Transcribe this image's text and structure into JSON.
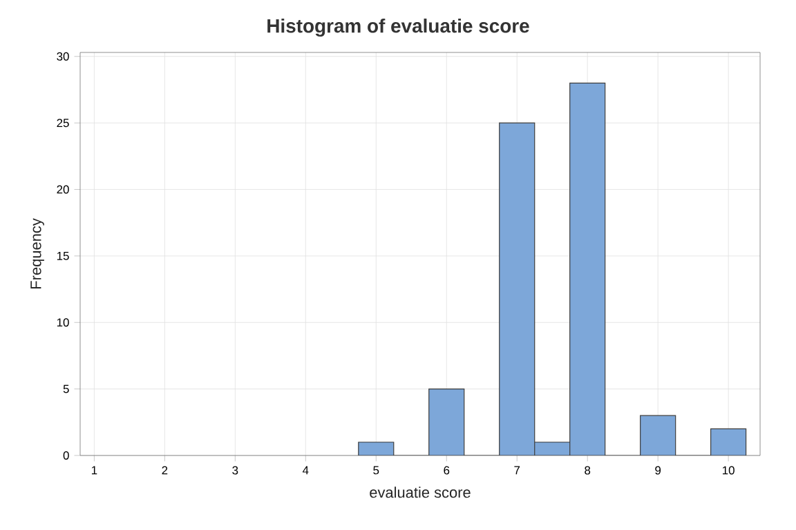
{
  "chart_data": {
    "type": "histogram",
    "title": "Histogram of evaluatie score",
    "xlabel": "evaluatie score",
    "ylabel": "Frequency",
    "bins": [
      4.75,
      5.25,
      5.75,
      6.25,
      6.75,
      7.25,
      7.75,
      8.25,
      8.75,
      9.25,
      9.75,
      10.25
    ],
    "values": [
      1,
      0,
      5,
      0,
      25,
      1,
      28,
      0,
      3,
      0,
      2
    ],
    "color": "#7da7d9",
    "xlim": [
      0.8,
      10.45
    ],
    "ylim": [
      0,
      30.3
    ],
    "xticks": [
      1,
      2,
      3,
      4,
      5,
      6,
      7,
      8,
      9,
      10
    ],
    "yticks": [
      0,
      5,
      10,
      15,
      20,
      25,
      30
    ],
    "grid": true
  }
}
